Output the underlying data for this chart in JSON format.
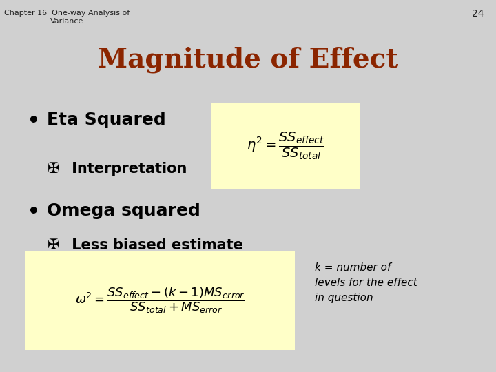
{
  "bg_color": "#d0d0d0",
  "header_text": "Chapter 16  One-way Analysis of\nVariance",
  "page_number": "24",
  "title": "Magnitude of Effect",
  "title_color": "#8B2500",
  "bullet1": "Eta Squared",
  "sub1_symbol": "✠",
  "sub1_text": " Interpretation",
  "bullet2": "Omega squared",
  "sub2_symbol": "✠",
  "sub2_text": " Less biased estimate",
  "formula_bg": "#FFFFC8",
  "formula1": "$\\eta^2 = \\dfrac{SS_{effect}}{SS_{total}}$",
  "formula2": "$\\omega^2 = \\dfrac{SS_{effect} - (k-1)MS_{error}}{SS_{total} + MS_{error}}$",
  "note_text": "k = number of\nlevels for the effect\nin question",
  "header_fontsize": 8,
  "title_fontsize": 28,
  "bullet_fontsize": 18,
  "sub_fontsize": 15,
  "formula1_fontsize": 14,
  "formula2_fontsize": 13,
  "note_fontsize": 11
}
